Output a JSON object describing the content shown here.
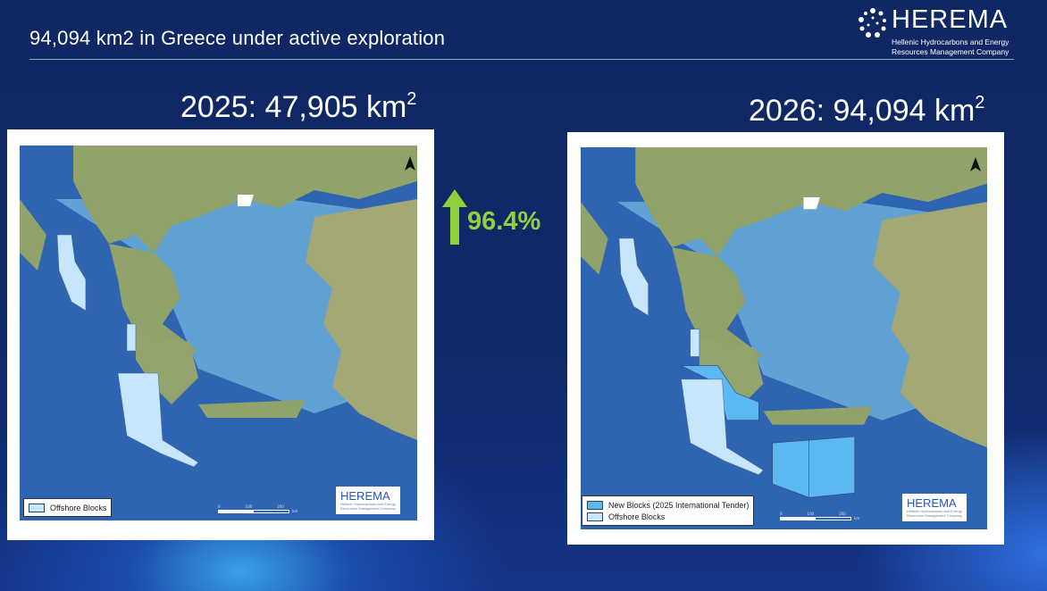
{
  "header": {
    "title": "94,094 km2 in Greece under active exploration"
  },
  "logo": {
    "name": "HEREMA",
    "subtitle_line1": "Hellenic Hydrocarbons and Energy",
    "subtitle_line2": "Resources Management Company"
  },
  "left_panel": {
    "year_label": "2025: 47,905 km",
    "unit_sup": "2",
    "legend": [
      {
        "label": "Offshore Blocks",
        "color": "#c6e6fb"
      }
    ],
    "map_logo": "HEREMA",
    "scale": [
      "0",
      "100",
      "200",
      "km"
    ]
  },
  "right_panel": {
    "year_label": "2026: 94,094 km",
    "unit_sup": "2",
    "legend": [
      {
        "label": "New Blocks (2025 International Tender)",
        "color": "#5bb8f0"
      },
      {
        "label": "Offshore Blocks",
        "color": "#c6e6fb"
      }
    ],
    "map_logo": "HEREMA",
    "scale": [
      "0",
      "100",
      "200",
      "km"
    ]
  },
  "change": {
    "value": "96.4%",
    "direction": "up",
    "icon": "arrow-up-icon",
    "color": "#8ed13c"
  },
  "colors": {
    "sea": "#2f65b0",
    "shallow": "#6fb0dc",
    "land": "#8fa36a",
    "offshore_blocks": "#c6e6fb",
    "new_blocks": "#5bb8f0"
  }
}
